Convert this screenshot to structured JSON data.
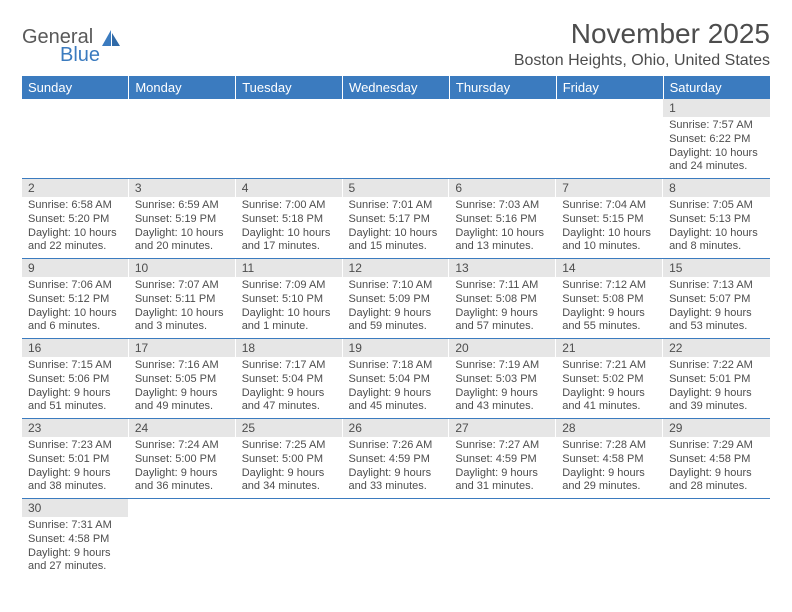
{
  "logo": {
    "line1": "General",
    "line2": "Blue"
  },
  "title": "November 2025",
  "location": "Boston Heights, Ohio, United States",
  "colors": {
    "header_bg": "#3b7bbf",
    "header_text": "#ffffff",
    "daynum_bg": "#e6e6e6",
    "text": "#4d4d4d",
    "row_divider": "#3b7bbf",
    "logo_gray": "#595959",
    "logo_blue": "#3b7bbf"
  },
  "weekdays": [
    "Sunday",
    "Monday",
    "Tuesday",
    "Wednesday",
    "Thursday",
    "Friday",
    "Saturday"
  ],
  "weeks": [
    [
      {
        "blank": true
      },
      {
        "blank": true
      },
      {
        "blank": true
      },
      {
        "blank": true
      },
      {
        "blank": true
      },
      {
        "blank": true
      },
      {
        "day": "1",
        "sunrise": "Sunrise: 7:57 AM",
        "sunset": "Sunset: 6:22 PM",
        "daylight1": "Daylight: 10 hours",
        "daylight2": "and 24 minutes."
      }
    ],
    [
      {
        "day": "2",
        "sunrise": "Sunrise: 6:58 AM",
        "sunset": "Sunset: 5:20 PM",
        "daylight1": "Daylight: 10 hours",
        "daylight2": "and 22 minutes."
      },
      {
        "day": "3",
        "sunrise": "Sunrise: 6:59 AM",
        "sunset": "Sunset: 5:19 PM",
        "daylight1": "Daylight: 10 hours",
        "daylight2": "and 20 minutes."
      },
      {
        "day": "4",
        "sunrise": "Sunrise: 7:00 AM",
        "sunset": "Sunset: 5:18 PM",
        "daylight1": "Daylight: 10 hours",
        "daylight2": "and 17 minutes."
      },
      {
        "day": "5",
        "sunrise": "Sunrise: 7:01 AM",
        "sunset": "Sunset: 5:17 PM",
        "daylight1": "Daylight: 10 hours",
        "daylight2": "and 15 minutes."
      },
      {
        "day": "6",
        "sunrise": "Sunrise: 7:03 AM",
        "sunset": "Sunset: 5:16 PM",
        "daylight1": "Daylight: 10 hours",
        "daylight2": "and 13 minutes."
      },
      {
        "day": "7",
        "sunrise": "Sunrise: 7:04 AM",
        "sunset": "Sunset: 5:15 PM",
        "daylight1": "Daylight: 10 hours",
        "daylight2": "and 10 minutes."
      },
      {
        "day": "8",
        "sunrise": "Sunrise: 7:05 AM",
        "sunset": "Sunset: 5:13 PM",
        "daylight1": "Daylight: 10 hours",
        "daylight2": "and 8 minutes."
      }
    ],
    [
      {
        "day": "9",
        "sunrise": "Sunrise: 7:06 AM",
        "sunset": "Sunset: 5:12 PM",
        "daylight1": "Daylight: 10 hours",
        "daylight2": "and 6 minutes."
      },
      {
        "day": "10",
        "sunrise": "Sunrise: 7:07 AM",
        "sunset": "Sunset: 5:11 PM",
        "daylight1": "Daylight: 10 hours",
        "daylight2": "and 3 minutes."
      },
      {
        "day": "11",
        "sunrise": "Sunrise: 7:09 AM",
        "sunset": "Sunset: 5:10 PM",
        "daylight1": "Daylight: 10 hours",
        "daylight2": "and 1 minute."
      },
      {
        "day": "12",
        "sunrise": "Sunrise: 7:10 AM",
        "sunset": "Sunset: 5:09 PM",
        "daylight1": "Daylight: 9 hours",
        "daylight2": "and 59 minutes."
      },
      {
        "day": "13",
        "sunrise": "Sunrise: 7:11 AM",
        "sunset": "Sunset: 5:08 PM",
        "daylight1": "Daylight: 9 hours",
        "daylight2": "and 57 minutes."
      },
      {
        "day": "14",
        "sunrise": "Sunrise: 7:12 AM",
        "sunset": "Sunset: 5:08 PM",
        "daylight1": "Daylight: 9 hours",
        "daylight2": "and 55 minutes."
      },
      {
        "day": "15",
        "sunrise": "Sunrise: 7:13 AM",
        "sunset": "Sunset: 5:07 PM",
        "daylight1": "Daylight: 9 hours",
        "daylight2": "and 53 minutes."
      }
    ],
    [
      {
        "day": "16",
        "sunrise": "Sunrise: 7:15 AM",
        "sunset": "Sunset: 5:06 PM",
        "daylight1": "Daylight: 9 hours",
        "daylight2": "and 51 minutes."
      },
      {
        "day": "17",
        "sunrise": "Sunrise: 7:16 AM",
        "sunset": "Sunset: 5:05 PM",
        "daylight1": "Daylight: 9 hours",
        "daylight2": "and 49 minutes."
      },
      {
        "day": "18",
        "sunrise": "Sunrise: 7:17 AM",
        "sunset": "Sunset: 5:04 PM",
        "daylight1": "Daylight: 9 hours",
        "daylight2": "and 47 minutes."
      },
      {
        "day": "19",
        "sunrise": "Sunrise: 7:18 AM",
        "sunset": "Sunset: 5:04 PM",
        "daylight1": "Daylight: 9 hours",
        "daylight2": "and 45 minutes."
      },
      {
        "day": "20",
        "sunrise": "Sunrise: 7:19 AM",
        "sunset": "Sunset: 5:03 PM",
        "daylight1": "Daylight: 9 hours",
        "daylight2": "and 43 minutes."
      },
      {
        "day": "21",
        "sunrise": "Sunrise: 7:21 AM",
        "sunset": "Sunset: 5:02 PM",
        "daylight1": "Daylight: 9 hours",
        "daylight2": "and 41 minutes."
      },
      {
        "day": "22",
        "sunrise": "Sunrise: 7:22 AM",
        "sunset": "Sunset: 5:01 PM",
        "daylight1": "Daylight: 9 hours",
        "daylight2": "and 39 minutes."
      }
    ],
    [
      {
        "day": "23",
        "sunrise": "Sunrise: 7:23 AM",
        "sunset": "Sunset: 5:01 PM",
        "daylight1": "Daylight: 9 hours",
        "daylight2": "and 38 minutes."
      },
      {
        "day": "24",
        "sunrise": "Sunrise: 7:24 AM",
        "sunset": "Sunset: 5:00 PM",
        "daylight1": "Daylight: 9 hours",
        "daylight2": "and 36 minutes."
      },
      {
        "day": "25",
        "sunrise": "Sunrise: 7:25 AM",
        "sunset": "Sunset: 5:00 PM",
        "daylight1": "Daylight: 9 hours",
        "daylight2": "and 34 minutes."
      },
      {
        "day": "26",
        "sunrise": "Sunrise: 7:26 AM",
        "sunset": "Sunset: 4:59 PM",
        "daylight1": "Daylight: 9 hours",
        "daylight2": "and 33 minutes."
      },
      {
        "day": "27",
        "sunrise": "Sunrise: 7:27 AM",
        "sunset": "Sunset: 4:59 PM",
        "daylight1": "Daylight: 9 hours",
        "daylight2": "and 31 minutes."
      },
      {
        "day": "28",
        "sunrise": "Sunrise: 7:28 AM",
        "sunset": "Sunset: 4:58 PM",
        "daylight1": "Daylight: 9 hours",
        "daylight2": "and 29 minutes."
      },
      {
        "day": "29",
        "sunrise": "Sunrise: 7:29 AM",
        "sunset": "Sunset: 4:58 PM",
        "daylight1": "Daylight: 9 hours",
        "daylight2": "and 28 minutes."
      }
    ],
    [
      {
        "day": "30",
        "sunrise": "Sunrise: 7:31 AM",
        "sunset": "Sunset: 4:58 PM",
        "daylight1": "Daylight: 9 hours",
        "daylight2": "and 27 minutes."
      },
      {
        "blank": true
      },
      {
        "blank": true
      },
      {
        "blank": true
      },
      {
        "blank": true
      },
      {
        "blank": true
      },
      {
        "blank": true
      }
    ]
  ]
}
